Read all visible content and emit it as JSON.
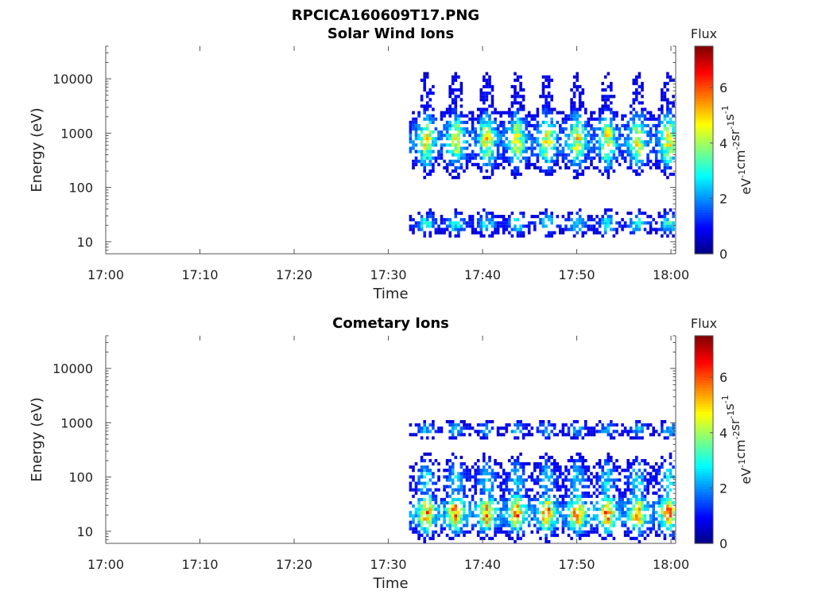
{
  "figure": {
    "title": "RPCICA160609T17.PNG"
  },
  "chart_data": [
    {
      "type": "heatmap",
      "title": "Solar Wind Ions",
      "xlabel": "Time",
      "ylabel": "Energy (eV)",
      "x_ticks": [
        "17:00",
        "17:10",
        "17:20",
        "17:30",
        "17:40",
        "17:50",
        "18:00"
      ],
      "x_range_minutes": [
        0,
        60.5
      ],
      "y_scale": "log",
      "y_range": [
        6,
        40000
      ],
      "y_ticks": [
        "10",
        "100",
        "1000",
        "10000"
      ],
      "colorbar": {
        "label": "Flux",
        "unit": "eV-1cm-2sr-1s-1",
        "range": [
          0,
          7.5
        ],
        "ticks": [
          "0",
          "2",
          "4",
          "6"
        ],
        "colormap": "jet"
      },
      "data_start_minutes": 32.2,
      "sweep_centers_minutes": [
        33.9,
        37.0,
        40.3,
        43.5,
        46.7,
        49.9,
        53.1,
        56.3,
        59.6
      ],
      "bursts": [
        {
          "name": "main peak",
          "energy_center_eV": 700,
          "energy_spread_decades": 0.35,
          "peak_flux": 4.8
        },
        {
          "name": "high energy scatter",
          "energy_center_eV": 5000,
          "energy_spread_decades": 0.4,
          "peak_flux": 1.0
        },
        {
          "name": "low energy band",
          "energy_center_eV": 20,
          "energy_spread_decades": 0.15,
          "peak_flux": 3.0
        }
      ],
      "grid": false
    },
    {
      "type": "heatmap",
      "title": "Cometary Ions",
      "xlabel": "Time",
      "ylabel": "Energy (eV)",
      "x_ticks": [
        "17:00",
        "17:10",
        "17:20",
        "17:30",
        "17:40",
        "17:50",
        "18:00"
      ],
      "x_range_minutes": [
        0,
        60.5
      ],
      "y_scale": "log",
      "y_range": [
        6,
        40000
      ],
      "y_ticks": [
        "10",
        "100",
        "1000",
        "10000"
      ],
      "colorbar": {
        "label": "Flux",
        "unit": "eV-1cm-2sr-1s-1",
        "range": [
          0,
          7.5
        ],
        "ticks": [
          "0",
          "2",
          "4",
          "6"
        ],
        "colormap": "jet"
      },
      "data_start_minutes": 32.2,
      "sweep_centers_minutes": [
        33.9,
        37.0,
        40.3,
        43.5,
        46.7,
        49.9,
        53.1,
        56.3,
        59.6
      ],
      "bursts": [
        {
          "name": "low energy band",
          "energy_center_eV": 20,
          "energy_spread_decades": 0.25,
          "peak_flux": 5.8
        },
        {
          "name": "mid peak",
          "energy_center_eV": 700,
          "energy_spread_decades": 0.12,
          "peak_flux": 2.4
        },
        {
          "name": "mid scatter",
          "energy_center_eV": 80,
          "energy_spread_decades": 0.3,
          "peak_flux": 2.8
        }
      ],
      "grid": false
    }
  ]
}
